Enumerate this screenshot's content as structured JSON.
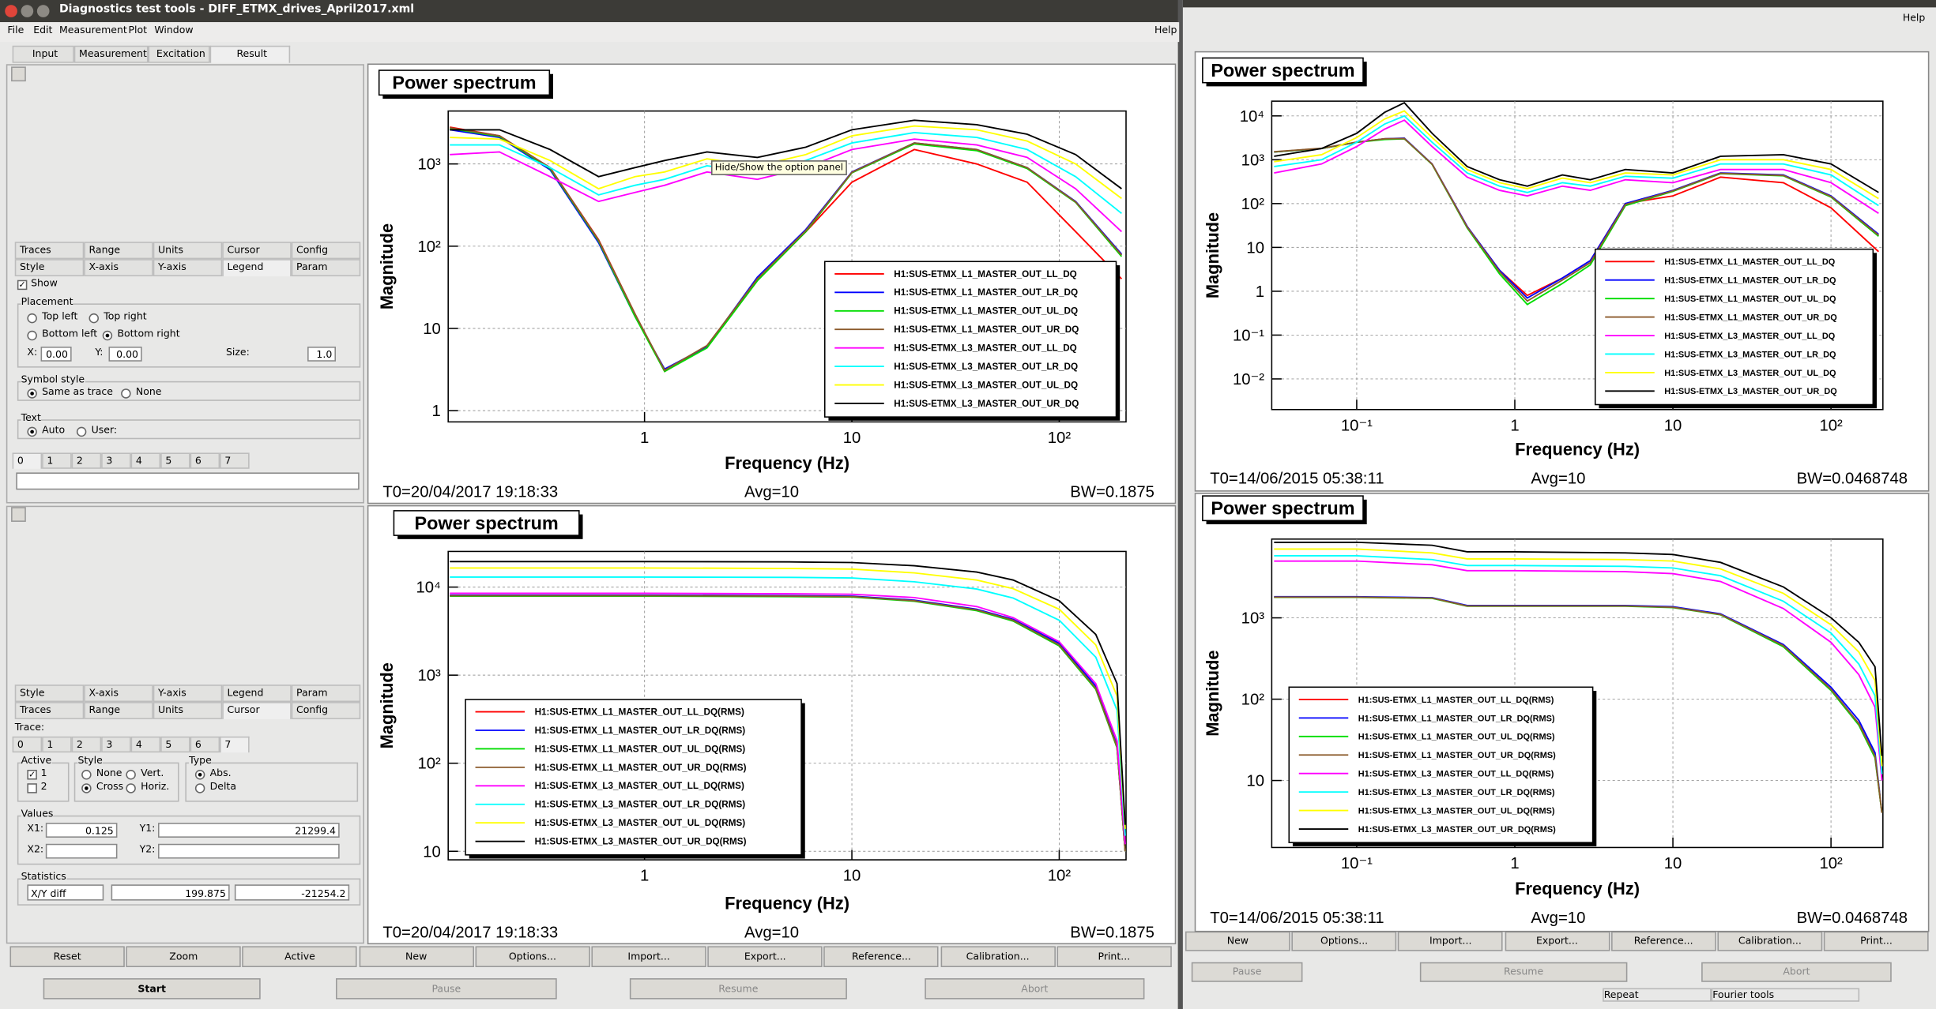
{
  "window": {
    "title": "Diagnostics test tools - DIFF_ETMX_drives_April2017.xml",
    "help": "Help"
  },
  "menu": [
    "File",
    "Edit",
    "Measurement",
    "Plot",
    "Window"
  ],
  "tabs": [
    "Input",
    "Measurement",
    "Excitation",
    "Result"
  ],
  "tooltip": "Hide/Show the option panel",
  "panel_top": {
    "tabs_row1": [
      "Traces",
      "Range",
      "Units",
      "Cursor",
      "Config"
    ],
    "tabs_row2": [
      "Style",
      "X-axis",
      "Y-axis",
      "Legend",
      "Param"
    ],
    "show": "Show",
    "placement": "Placement",
    "placement_options": [
      "Top left",
      "Top right",
      "Bottom left",
      "Bottom right"
    ],
    "x_label": "X:",
    "x_value": "0.00",
    "y_label": "Y:",
    "y_value": "0.00",
    "size_label": "Size:",
    "size_value": "1.0",
    "symbol_style": "Symbol style",
    "symbol_options": [
      "Same as trace",
      "None"
    ],
    "text_group": "Text",
    "text_options": [
      "Auto",
      "User:"
    ],
    "trace_tabs": [
      "0",
      "1",
      "2",
      "3",
      "4",
      "5",
      "6",
      "7"
    ]
  },
  "panel_bottom": {
    "tabs_row1": [
      "Style",
      "X-axis",
      "Y-axis",
      "Legend",
      "Param"
    ],
    "tabs_row2": [
      "Traces",
      "Range",
      "Units",
      "Cursor",
      "Config"
    ],
    "trace_label": "Trace:",
    "trace_tabs": [
      "0",
      "1",
      "2",
      "3",
      "4",
      "5",
      "6",
      "7"
    ],
    "active": "Active",
    "active_options": [
      "1",
      "2"
    ],
    "style": "Style",
    "style_options": [
      "None",
      "Vert.",
      "Cross",
      "Horiz."
    ],
    "type": "Type",
    "type_options": [
      "Abs.",
      "Delta"
    ],
    "values": "Values",
    "x1": "X1:",
    "x1_value": "0.125",
    "y1": "Y1:",
    "y1_value": "21299.4",
    "x2": "X2:",
    "y2": "Y2:",
    "statistics": "Statistics",
    "stat_mode": "X/Y diff",
    "stat_values": [
      "199.875",
      "-21254.2"
    ]
  },
  "buttons": [
    "Reset",
    "Zoom",
    "Active",
    "New",
    "Options...",
    "Import...",
    "Export...",
    "Reference...",
    "Calibration...",
    "Print..."
  ],
  "controls": [
    "Start",
    "Pause",
    "Resume",
    "Abort"
  ],
  "right_window": {
    "help": "Help",
    "buttons": [
      "New",
      "Options...",
      "Import...",
      "Export...",
      "Reference...",
      "Calibration...",
      "Print..."
    ],
    "controls": [
      "Pause",
      "Resume",
      "Abort"
    ],
    "status": [
      "Repeat",
      "Fourier tools"
    ]
  },
  "chart_data": [
    {
      "type": "line",
      "title": "Power spectrum",
      "xlabel": "Frequency (Hz)",
      "ylabel": "Magnitude",
      "xscale": "log",
      "yscale": "log",
      "grid": true,
      "legend": "bottom right",
      "xlim": [
        0.113,
        210
      ],
      "ylim": [
        0.73,
        4400
      ],
      "xticks": [
        1,
        10,
        {
          "value": 100,
          "label": "10²"
        }
      ],
      "yticks": [
        1,
        10,
        {
          "value": 100,
          "label": "10²"
        },
        {
          "value": 1000,
          "label": "10³"
        }
      ],
      "annotations": [
        "T0=20/04/2017 19:18:33",
        "Avg=10",
        "BW=0.1875"
      ],
      "x": [
        0.115,
        0.2,
        0.35,
        0.6,
        0.9,
        1.25,
        2,
        3.5,
        6,
        10,
        20,
        40,
        70,
        120,
        200
      ],
      "series": [
        {
          "name": "H1:SUS-ETMX_L1_MASTER_OUT_LL_DQ",
          "color": "#ff0000",
          "values": [
            2800,
            2200,
            900,
            120,
            15,
            3,
            6,
            40,
            150,
            600,
            1500,
            1000,
            600,
            150,
            40
          ]
        },
        {
          "name": "H1:SUS-ETMX_L1_MASTER_OUT_LR_DQ",
          "color": "#0000ff",
          "values": [
            2600,
            2100,
            850,
            110,
            14,
            3.2,
            6,
            42,
            160,
            800,
            1800,
            1500,
            900,
            350,
            80
          ]
        },
        {
          "name": "H1:SUS-ETMX_L1_MASTER_OUT_UL_DQ",
          "color": "#00dd00",
          "values": [
            2700,
            2150,
            880,
            115,
            14,
            3,
            5.8,
            38,
            150,
            780,
            1750,
            1450,
            880,
            340,
            75
          ]
        },
        {
          "name": "H1:SUS-ETMX_L1_MASTER_OUT_UR_DQ",
          "color": "#8b5a2b",
          "values": [
            2750,
            2200,
            900,
            118,
            15,
            3.1,
            6.2,
            40,
            155,
            790,
            1800,
            1500,
            900,
            345,
            78
          ]
        },
        {
          "name": "H1:SUS-ETMX_L3_MASTER_OUT_LL_DQ",
          "color": "#ff00ff",
          "values": [
            1300,
            1400,
            700,
            350,
            450,
            550,
            800,
            650,
            900,
            1500,
            2000,
            1700,
            1200,
            500,
            150
          ]
        },
        {
          "name": "H1:SUS-ETMX_L3_MASTER_OUT_LR_DQ",
          "color": "#00ffff",
          "values": [
            1700,
            1700,
            900,
            420,
            550,
            650,
            950,
            780,
            1100,
            1800,
            2400,
            2100,
            1500,
            700,
            250
          ]
        },
        {
          "name": "H1:SUS-ETMX_L3_MASTER_OUT_UL_DQ",
          "color": "#ffff00",
          "values": [
            2100,
            2000,
            1100,
            500,
            700,
            800,
            1150,
            950,
            1300,
            2200,
            2900,
            2600,
            1900,
            1000,
            380
          ]
        },
        {
          "name": "H1:SUS-ETMX_L3_MASTER_OUT_UR_DQ",
          "color": "#000000",
          "values": [
            2600,
            2600,
            1500,
            700,
            900,
            1100,
            1400,
            1200,
            1600,
            2600,
            3400,
            3000,
            2300,
            1300,
            500
          ]
        }
      ]
    },
    {
      "type": "line",
      "title": "Power spectrum",
      "xlabel": "Frequency (Hz)",
      "ylabel": "Magnitude",
      "xscale": "log",
      "yscale": "log",
      "grid": true,
      "legend": "bottom left",
      "xlim": [
        0.113,
        210
      ],
      "ylim": [
        8,
        25400
      ],
      "xticks": [
        1,
        10,
        {
          "value": 100,
          "label": "10²"
        }
      ],
      "yticks": [
        10,
        {
          "value": 100,
          "label": "10²"
        },
        {
          "value": 1000,
          "label": "10³"
        },
        {
          "value": 10000,
          "label": "10⁴"
        }
      ],
      "annotations": [
        "T0=20/04/2017 19:18:33",
        "Avg=10",
        "BW=0.1875"
      ],
      "x": [
        0.115,
        0.5,
        1,
        5,
        10,
        20,
        40,
        60,
        100,
        150,
        190,
        208
      ],
      "series": [
        {
          "name": "H1:SUS-ETMX_L1_MASTER_OUT_LL_DQ(RMS)",
          "color": "#ff0000",
          "values": [
            8000,
            8000,
            8000,
            7900,
            7800,
            7000,
            5500,
            4200,
            2200,
            700,
            150,
            10
          ]
        },
        {
          "name": "H1:SUS-ETMX_L1_MASTER_OUT_LR_DQ(RMS)",
          "color": "#0000ff",
          "values": [
            8100,
            8100,
            8100,
            8000,
            7900,
            7100,
            5600,
            4300,
            2300,
            750,
            160,
            10
          ]
        },
        {
          "name": "H1:SUS-ETMX_L1_MASTER_OUT_UL_DQ(RMS)",
          "color": "#00dd00",
          "values": [
            7900,
            7900,
            7900,
            7800,
            7700,
            6900,
            5400,
            4100,
            2150,
            690,
            150,
            10
          ]
        },
        {
          "name": "H1:SUS-ETMX_L1_MASTER_OUT_UR_DQ(RMS)",
          "color": "#8b5a2b",
          "values": [
            8000,
            8000,
            8000,
            7900,
            7800,
            7000,
            5500,
            4200,
            2200,
            710,
            155,
            10
          ]
        },
        {
          "name": "H1:SUS-ETMX_L3_MASTER_OUT_LL_DQ(RMS)",
          "color": "#ff00ff",
          "values": [
            8500,
            8500,
            8500,
            8400,
            8300,
            7600,
            6000,
            4500,
            2400,
            800,
            180,
            12
          ]
        },
        {
          "name": "H1:SUS-ETMX_L3_MASTER_OUT_LR_DQ(RMS)",
          "color": "#00ffff",
          "values": [
            13000,
            13000,
            13000,
            12900,
            12700,
            11500,
            9500,
            7500,
            4200,
            1600,
            400,
            15
          ]
        },
        {
          "name": "H1:SUS-ETMX_L3_MASTER_OUT_UL_DQ(RMS)",
          "color": "#ffff00",
          "values": [
            16500,
            16500,
            16500,
            16300,
            16000,
            14500,
            12000,
            9600,
            5600,
            2200,
            580,
            18
          ]
        },
        {
          "name": "H1:SUS-ETMX_L3_MASTER_OUT_UR_DQ(RMS)",
          "color": "#000000",
          "values": [
            19500,
            19500,
            19500,
            19300,
            19000,
            17500,
            14800,
            12000,
            7000,
            2900,
            800,
            20
          ]
        }
      ]
    },
    {
      "type": "line",
      "title": "Power spectrum",
      "xlabel": "Frequency (Hz)",
      "ylabel": "Magnitude",
      "xscale": "log",
      "yscale": "log",
      "grid": true,
      "legend": "bottom right",
      "xlim": [
        0.029,
        213
      ],
      "ylim": [
        0.002,
        21700
      ],
      "xticks": [
        {
          "value": 0.1,
          "label": "10⁻¹"
        },
        1,
        10,
        {
          "value": 100,
          "label": "10²"
        }
      ],
      "yticks": [
        {
          "value": 0.01,
          "label": "10⁻²"
        },
        {
          "value": 0.1,
          "label": "10⁻¹"
        },
        1,
        10,
        {
          "value": 100,
          "label": "10²"
        },
        {
          "value": 1000,
          "label": "10³"
        },
        {
          "value": 10000,
          "label": "10⁴"
        }
      ],
      "annotations": [
        "T0=14/06/2015 05:38:11",
        "Avg=10",
        "BW=0.0468748"
      ],
      "x": [
        0.03,
        0.06,
        0.1,
        0.15,
        0.2,
        0.3,
        0.5,
        0.8,
        1.2,
        2,
        3,
        5,
        10,
        20,
        50,
        100,
        200
      ],
      "series": [
        {
          "name": "H1:SUS-ETMX_L1_MASTER_OUT_LL_DQ",
          "color": "#ff0000",
          "values": [
            1500,
            1800,
            2500,
            3000,
            3000,
            800,
            30,
            3,
            0.8,
            2,
            5,
            100,
            150,
            400,
            300,
            80,
            8
          ]
        },
        {
          "name": "H1:SUS-ETMX_L1_MASTER_OUT_LR_DQ",
          "color": "#0000ff",
          "values": [
            1500,
            1800,
            2500,
            3000,
            3100,
            800,
            30,
            3,
            0.7,
            2,
            5,
            100,
            200,
            500,
            450,
            150,
            20
          ]
        },
        {
          "name": "H1:SUS-ETMX_L1_MASTER_OUT_UL_DQ",
          "color": "#00dd00",
          "values": [
            1500,
            1800,
            2500,
            2900,
            3000,
            780,
            28,
            2.5,
            0.5,
            1.5,
            4,
            90,
            190,
            480,
            430,
            140,
            18
          ]
        },
        {
          "name": "H1:SUS-ETMX_L1_MASTER_OUT_UR_DQ",
          "color": "#8b5a2b",
          "values": [
            1520,
            1820,
            2520,
            3000,
            3050,
            790,
            29,
            2.8,
            0.6,
            1.8,
            4.5,
            95,
            195,
            490,
            440,
            145,
            19
          ]
        },
        {
          "name": "H1:SUS-ETMX_L3_MASTER_OUT_LL_DQ",
          "color": "#ff00ff",
          "values": [
            500,
            800,
            2000,
            5000,
            8000,
            2000,
            400,
            200,
            150,
            250,
            200,
            350,
            300,
            600,
            600,
            300,
            60
          ]
        },
        {
          "name": "H1:SUS-ETMX_L3_MASTER_OUT_LR_DQ",
          "color": "#00ffff",
          "values": [
            700,
            1000,
            2500,
            6500,
            10000,
            2500,
            500,
            250,
            180,
            300,
            250,
            420,
            380,
            800,
            800,
            450,
            90
          ]
        },
        {
          "name": "H1:SUS-ETMX_L3_MASTER_OUT_UL_DQ",
          "color": "#ffff00",
          "values": [
            900,
            1300,
            3200,
            8500,
            13000,
            3200,
            600,
            300,
            220,
            380,
            300,
            500,
            450,
            1000,
            1000,
            600,
            130
          ]
        },
        {
          "name": "H1:SUS-ETMX_L3_MASTER_OUT_UR_DQ",
          "color": "#000000",
          "values": [
            1200,
            1800,
            4000,
            12000,
            20000,
            4000,
            700,
            350,
            250,
            450,
            350,
            600,
            500,
            1200,
            1300,
            800,
            180
          ]
        }
      ]
    },
    {
      "type": "line",
      "title": "Power spectrum",
      "xlabel": "Frequency (Hz)",
      "ylabel": "Magnitude",
      "xscale": "log",
      "yscale": "log",
      "grid": true,
      "legend": "bottom left",
      "xlim": [
        0.029,
        213
      ],
      "ylim": [
        1.5,
        9300
      ],
      "xticks": [
        {
          "value": 0.1,
          "label": "10⁻¹"
        },
        1,
        10,
        {
          "value": 100,
          "label": "10²"
        }
      ],
      "yticks": [
        10,
        {
          "value": 100,
          "label": "10²"
        },
        {
          "value": 1000,
          "label": "10³"
        }
      ],
      "annotations": [
        "T0=14/06/2015 05:38:11",
        "Avg=10",
        "BW=0.0468748"
      ],
      "x": [
        0.03,
        0.1,
        0.3,
        0.5,
        1,
        5,
        10,
        20,
        50,
        100,
        150,
        190,
        210
      ],
      "series": [
        {
          "name": "H1:SUS-ETMX_L1_MASTER_OUT_LL_DQ(RMS)",
          "color": "#ff0000",
          "values": [
            1800,
            1800,
            1750,
            1400,
            1400,
            1400,
            1350,
            1100,
            450,
            130,
            50,
            20,
            4
          ]
        },
        {
          "name": "H1:SUS-ETMX_L1_MASTER_OUT_LR_DQ(RMS)",
          "color": "#0000ff",
          "values": [
            1820,
            1820,
            1770,
            1420,
            1420,
            1420,
            1370,
            1120,
            470,
            140,
            55,
            22,
            4
          ]
        },
        {
          "name": "H1:SUS-ETMX_L1_MASTER_OUT_UL_DQ(RMS)",
          "color": "#00dd00",
          "values": [
            1790,
            1790,
            1740,
            1390,
            1390,
            1390,
            1340,
            1090,
            440,
            128,
            48,
            19,
            4
          ]
        },
        {
          "name": "H1:SUS-ETMX_L1_MASTER_OUT_UR_DQ(RMS)",
          "color": "#8b5a2b",
          "values": [
            1800,
            1800,
            1750,
            1400,
            1400,
            1400,
            1350,
            1100,
            455,
            132,
            50,
            20,
            4
          ]
        },
        {
          "name": "H1:SUS-ETMX_L3_MASTER_OUT_LL_DQ(RMS)",
          "color": "#ff00ff",
          "values": [
            5000,
            5000,
            4500,
            3800,
            3800,
            3700,
            3500,
            2800,
            1300,
            500,
            200,
            80,
            10
          ]
        },
        {
          "name": "H1:SUS-ETMX_L3_MASTER_OUT_LR_DQ(RMS)",
          "color": "#00ffff",
          "values": [
            5800,
            5800,
            5200,
            4400,
            4400,
            4300,
            4100,
            3300,
            1600,
            650,
            270,
            110,
            12
          ]
        },
        {
          "name": "H1:SUS-ETMX_L3_MASTER_OUT_UL_DQ(RMS)",
          "color": "#ffff00",
          "values": [
            7000,
            7000,
            6300,
            5300,
            5300,
            5200,
            5000,
            4000,
            2000,
            820,
            380,
            170,
            15
          ]
        },
        {
          "name": "H1:SUS-ETMX_L3_MASTER_OUT_UR_DQ(RMS)",
          "color": "#000000",
          "values": [
            8500,
            8500,
            7800,
            6500,
            6500,
            6300,
            6000,
            4800,
            2400,
            1000,
            500,
            250,
            20
          ]
        }
      ]
    }
  ]
}
